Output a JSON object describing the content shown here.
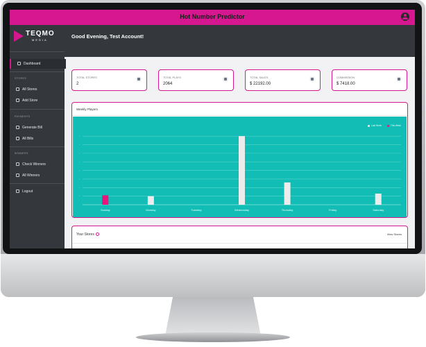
{
  "app": {
    "title": "Hot Number Predictor",
    "brand": "TEQMO",
    "brand_sub": "MEDIA",
    "greeting": "Good Evening, Test Account!"
  },
  "colors": {
    "accent": "#d6178f",
    "sidebar": "#34383d",
    "chart_bg": "#11bdb4"
  },
  "sidebar": {
    "dashboard": "Dashboard",
    "sections": {
      "stores": "STORES",
      "payments": "PAYMENTS",
      "winners": "WINNERS"
    },
    "items": {
      "all_stores": "All Stores",
      "add_store": "Add Store",
      "generate_bill": "Generate Bill",
      "all_bills": "All Bills",
      "check_winners": "Check Winners",
      "all_winners": "All Winners",
      "logout": "Logout"
    }
  },
  "cards": [
    {
      "label": "TOTAL STORES",
      "value": "2",
      "icon": "store-icon"
    },
    {
      "label": "TOTAL PLAYS",
      "value": "2064",
      "icon": "calendar-icon"
    },
    {
      "label": "TOTAL SALES",
      "value": "$ 22192.00",
      "icon": "money-icon"
    },
    {
      "label": "COMMISSION",
      "value": "$ 7418.00",
      "icon": "info-icon"
    }
  ],
  "weekly": {
    "title": "Weekly Players",
    "legend": [
      "Last Week",
      "This Week"
    ]
  },
  "chart_data": {
    "type": "bar",
    "categories": [
      "Sunday",
      "Monday",
      "Tuesday",
      "Wednesday",
      "Thursday",
      "Friday",
      "Saturday"
    ],
    "series": [
      {
        "name": "Last Week",
        "color": "#ececec",
        "values": [
          0,
          1,
          0,
          8,
          2.6,
          0,
          1.3
        ]
      },
      {
        "name": "This Week",
        "color": "#e8157f",
        "values": [
          1.1,
          0,
          0,
          0,
          0,
          0,
          0
        ]
      }
    ],
    "ylim": [
      0,
      8.5
    ],
    "grid": true,
    "legend_position": "top-right"
  },
  "stores": {
    "title": "Your Stores",
    "view_link": "View Stores"
  }
}
